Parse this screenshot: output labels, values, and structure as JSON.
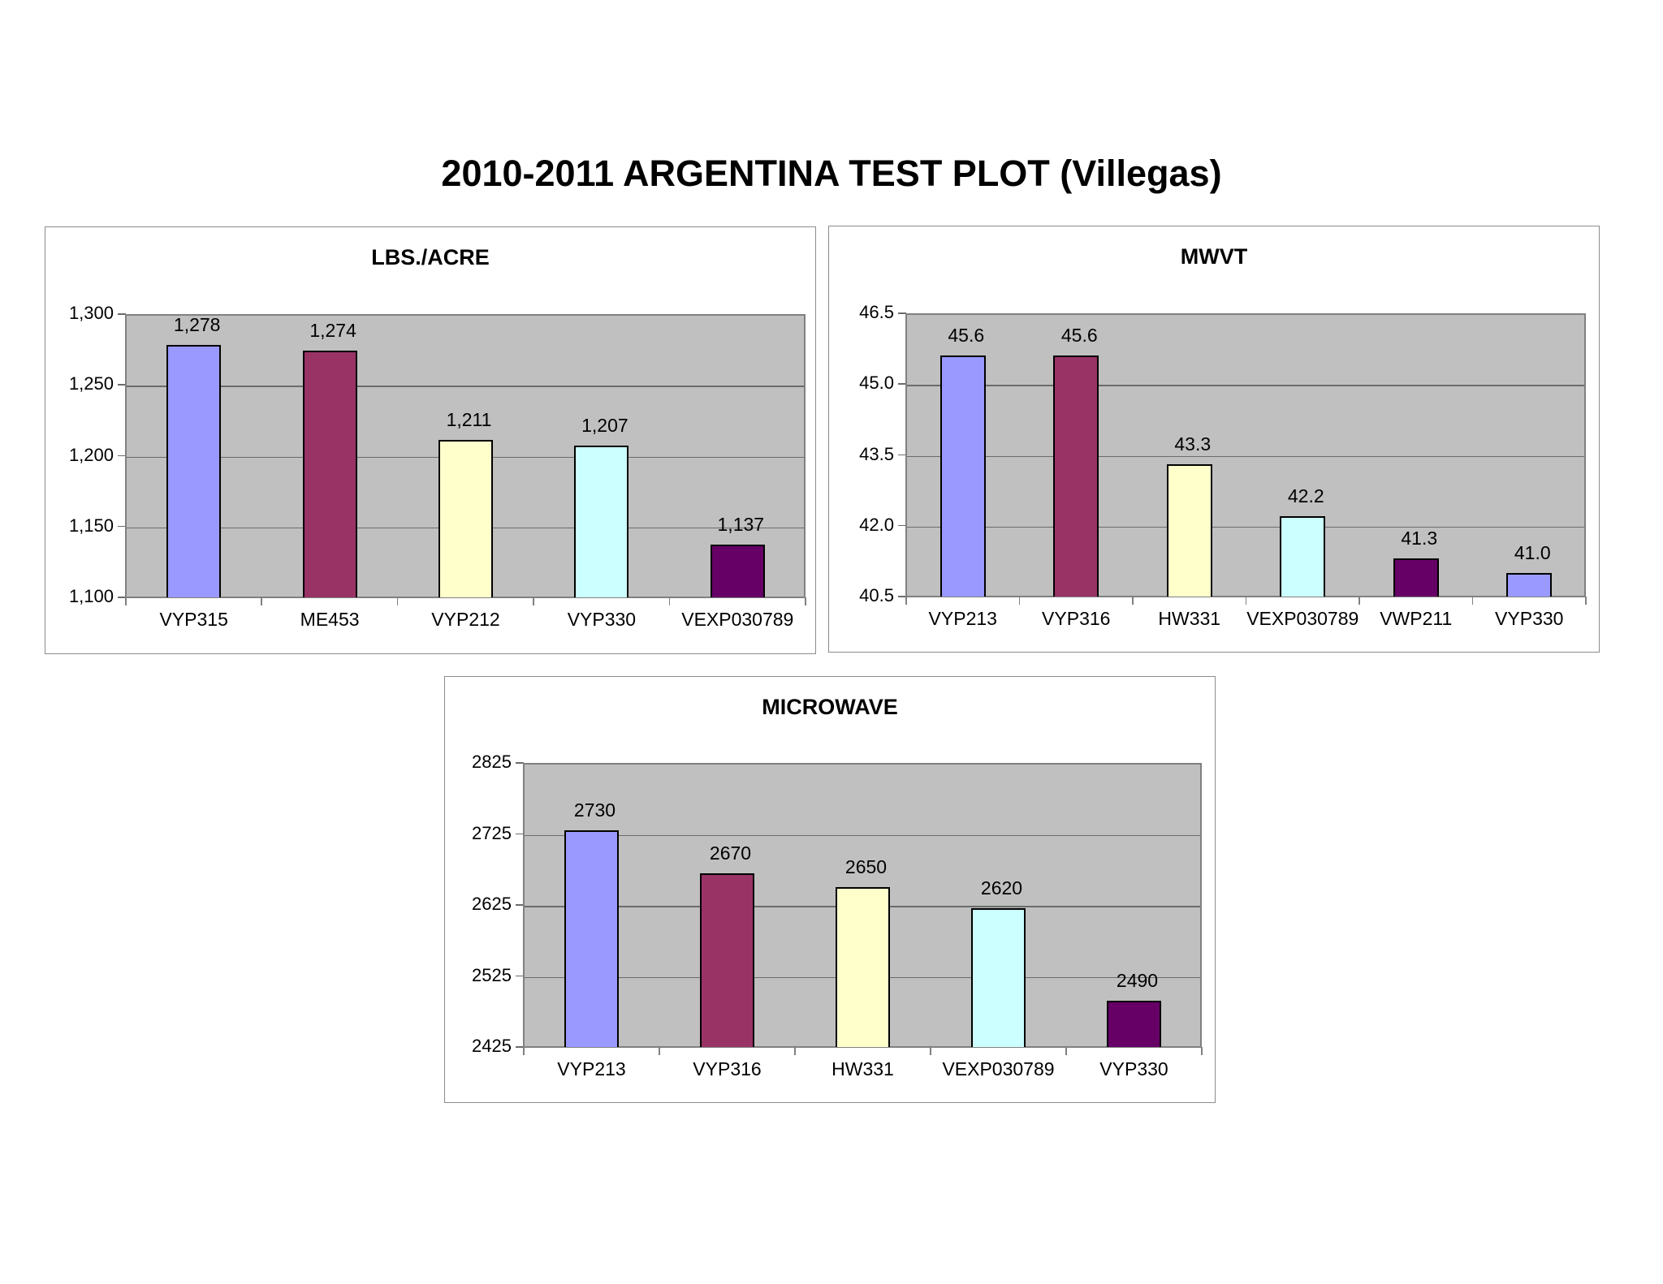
{
  "page": {
    "title": "2010-2011 ARGENTINA TEST PLOT (Villegas)"
  },
  "colors": {
    "lavender": "#9999FF",
    "maroon": "#993366",
    "light_yellow": "#FFFFCC",
    "light_cyan": "#CCFFFF",
    "purple": "#660066",
    "plot_background": "#C0C0C0"
  },
  "charts": [
    {
      "id": "lbs",
      "title": "LBS./ACRE",
      "ymin": 1100,
      "ymax": 1300,
      "yticks": [
        "1,300",
        "1,250",
        "1,200",
        "1,150",
        "1,100"
      ],
      "bars": [
        {
          "label": "VYP315",
          "value": 1278,
          "display": "1,278",
          "color": "#9999FF"
        },
        {
          "label": "ME453",
          "value": 1274,
          "display": "1,274",
          "color": "#993366"
        },
        {
          "label": "VYP212",
          "value": 1211,
          "display": "1,211",
          "color": "#FFFFCC"
        },
        {
          "label": "VYP330",
          "value": 1207,
          "display": "1,207",
          "color": "#CCFFFF"
        },
        {
          "label": "VEXP030789",
          "value": 1137,
          "display": "1,137",
          "color": "#660066"
        }
      ]
    },
    {
      "id": "mwvt",
      "title": "MWVT",
      "ymin": 40.5,
      "ymax": 46.5,
      "yticks": [
        "46.5",
        "45.0",
        "43.5",
        "42.0",
        "40.5"
      ],
      "bars": [
        {
          "label": "VYP213",
          "value": 45.6,
          "display": "45.6",
          "color": "#9999FF"
        },
        {
          "label": "VYP316",
          "value": 45.6,
          "display": "45.6",
          "color": "#993366"
        },
        {
          "label": "HW331",
          "value": 43.3,
          "display": "43.3",
          "color": "#FFFFCC"
        },
        {
          "label": "VEXP030789",
          "value": 42.2,
          "display": "42.2",
          "color": "#CCFFFF"
        },
        {
          "label": "VWP211",
          "value": 41.3,
          "display": "41.3",
          "color": "#660066"
        },
        {
          "label": "VYP330",
          "value": 41.0,
          "display": "41.0",
          "color": "#9999FF"
        }
      ]
    },
    {
      "id": "microwave",
      "title": "MICROWAVE",
      "ymin": 2425,
      "ymax": 2825,
      "yticks": [
        "2825",
        "2725",
        "2625",
        "2525",
        "2425"
      ],
      "bars": [
        {
          "label": "VYP213",
          "value": 2730,
          "display": "2730",
          "color": "#9999FF"
        },
        {
          "label": "VYP316",
          "value": 2670,
          "display": "2670",
          "color": "#993366"
        },
        {
          "label": "HW331",
          "value": 2650,
          "display": "2650",
          "color": "#FFFFCC"
        },
        {
          "label": "VEXP030789",
          "value": 2620,
          "display": "2620",
          "color": "#CCFFFF"
        },
        {
          "label": "VYP330",
          "value": 2490,
          "display": "2490",
          "color": "#660066"
        }
      ]
    }
  ],
  "chart_data": [
    {
      "type": "bar",
      "title": "LBS./ACRE",
      "suptitle": "2010-2011 ARGENTINA TEST PLOT (Villegas)",
      "categories": [
        "VYP315",
        "ME453",
        "VYP212",
        "VYP330",
        "VEXP030789"
      ],
      "values": [
        1278,
        1274,
        1211,
        1207,
        1137
      ],
      "xlabel": "",
      "ylabel": "",
      "ylim": [
        1100,
        1300
      ],
      "yticks": [
        1100,
        1150,
        1200,
        1250,
        1300
      ],
      "grid": true,
      "legend": "none",
      "bar_colors": [
        "#9999FF",
        "#993366",
        "#FFFFCC",
        "#CCFFFF",
        "#660066"
      ]
    },
    {
      "type": "bar",
      "title": "MWVT",
      "suptitle": "2010-2011 ARGENTINA TEST PLOT (Villegas)",
      "categories": [
        "VYP213",
        "VYP316",
        "HW331",
        "VEXP030789",
        "VWP211",
        "VYP330"
      ],
      "values": [
        45.6,
        45.6,
        43.3,
        42.2,
        41.3,
        41.0
      ],
      "xlabel": "",
      "ylabel": "",
      "ylim": [
        40.5,
        46.5
      ],
      "yticks": [
        40.5,
        42.0,
        43.5,
        45.0,
        46.5
      ],
      "grid": true,
      "legend": "none",
      "bar_colors": [
        "#9999FF",
        "#993366",
        "#FFFFCC",
        "#CCFFFF",
        "#660066",
        "#9999FF"
      ]
    },
    {
      "type": "bar",
      "title": "MICROWAVE",
      "suptitle": "2010-2011 ARGENTINA TEST PLOT (Villegas)",
      "categories": [
        "VYP213",
        "VYP316",
        "HW331",
        "VEXP030789",
        "VYP330"
      ],
      "values": [
        2730,
        2670,
        2650,
        2620,
        2490
      ],
      "xlabel": "",
      "ylabel": "",
      "ylim": [
        2425,
        2825
      ],
      "yticks": [
        2425,
        2525,
        2625,
        2725,
        2825
      ],
      "grid": true,
      "legend": "none",
      "bar_colors": [
        "#9999FF",
        "#993366",
        "#FFFFCC",
        "#CCFFFF",
        "#660066"
      ]
    }
  ]
}
